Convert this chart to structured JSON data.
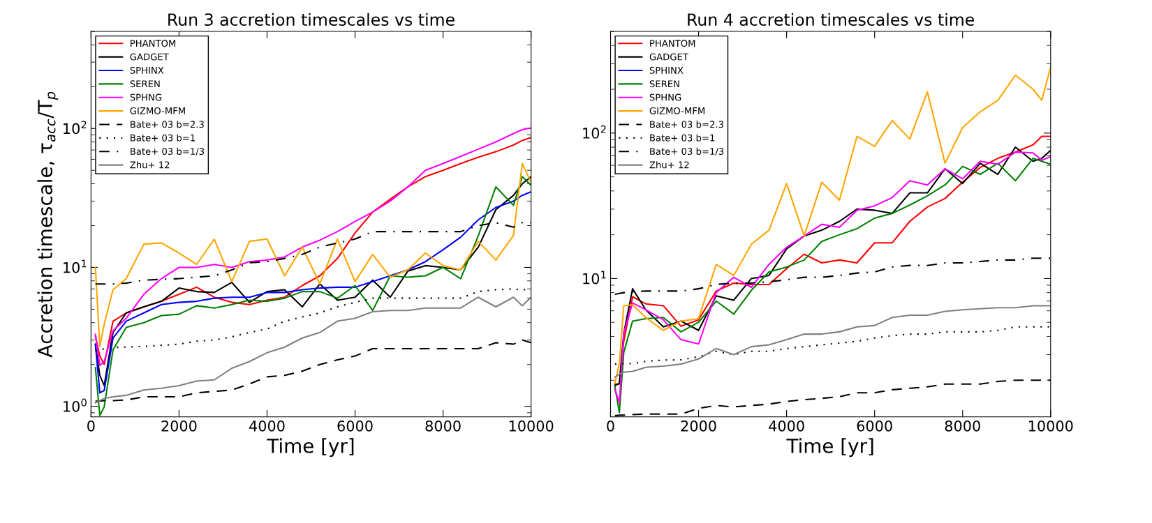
{
  "chart_data": [
    {
      "type": "line",
      "title": "Run 3 accretion timescales vs time",
      "xlabel": "Time [yr]",
      "ylabel": "Accretion timescale, τ$_{acc}$/T$_{p}$",
      "log": "y",
      "grid": false,
      "legend": "top left",
      "xlim": [
        0,
        10000
      ],
      "xticks": [
        0,
        2000,
        4000,
        6000,
        8000,
        10000
      ],
      "ylim": [
        0.84,
        500
      ],
      "yticks": [
        {
          "value": 1,
          "label": "10$^{0}$"
        },
        {
          "value": 10,
          "label": "10$^{1}$"
        },
        {
          "value": 100,
          "label": "10$^{2}$"
        }
      ],
      "x": [
        100,
        200,
        300,
        500,
        800,
        1200,
        1600,
        2000,
        2400,
        2800,
        3200,
        3600,
        4000,
        4400,
        4800,
        5200,
        5600,
        6000,
        6400,
        6800,
        7200,
        7600,
        8000,
        8400,
        8800,
        9200,
        9600,
        9800,
        10000
      ],
      "series": [
        {
          "name": "PHANTOM",
          "color": "#ff0000",
          "line_style": "solid",
          "values": [
            3.2,
            2.3,
            2.0,
            4.1,
            4.7,
            5.2,
            5.7,
            6.4,
            7.2,
            6.1,
            5.6,
            5.4,
            5.8,
            6.1,
            7.4,
            8.7,
            11.6,
            17.7,
            25,
            31,
            38,
            45,
            50,
            56,
            62,
            68,
            76,
            82,
            86
          ]
        },
        {
          "name": "GADGET",
          "color": "#000000",
          "line_style": "solid",
          "values": [
            2.8,
            1.67,
            1.41,
            3.4,
            4.7,
            5.2,
            5.7,
            7.1,
            6.7,
            6.6,
            7.8,
            5.6,
            6.7,
            6.9,
            5.2,
            7.6,
            5.8,
            6.1,
            8.1,
            6.1,
            9.4,
            10.3,
            10,
            9.6,
            14,
            26,
            33,
            40,
            45
          ]
        },
        {
          "name": "SPHINX",
          "color": "#0000ff",
          "line_style": "solid",
          "values": [
            2.8,
            1.25,
            1.3,
            3.1,
            4.1,
            4.7,
            5.4,
            5.6,
            5.7,
            6.0,
            6.1,
            6.1,
            6.6,
            6.6,
            6.9,
            7.1,
            7.2,
            7.2,
            7.9,
            8.7,
            9.6,
            11,
            13.4,
            16.5,
            22,
            27,
            30,
            33,
            35
          ]
        },
        {
          "name": "SEREN",
          "color": "#008000",
          "line_style": "solid",
          "values": [
            1.9,
            0.86,
            0.99,
            2.55,
            3.7,
            4.0,
            4.5,
            4.6,
            5.3,
            5.1,
            5.4,
            5.8,
            5.7,
            6.0,
            6.7,
            6.7,
            6.0,
            7.4,
            4.9,
            8.7,
            8.5,
            8.7,
            10,
            8.3,
            16.9,
            38,
            28,
            45,
            39
          ]
        },
        {
          "name": "SPHNG",
          "color": "#ff00ff",
          "line_style": "solid",
          "values": [
            3.3,
            1.97,
            2.1,
            3.5,
            4.3,
            6.4,
            8.3,
            10,
            10,
            10.5,
            10,
            11,
            11.3,
            11.9,
            14,
            15.7,
            18.1,
            21.4,
            25,
            30,
            38,
            50,
            56,
            63,
            71,
            80,
            92,
            98,
            101
          ]
        },
        {
          "name": "GIZMO-MFM",
          "color": "#ffa500",
          "line_style": "solid",
          "values": [
            10,
            2.7,
            3.9,
            6.9,
            8.3,
            14.7,
            15,
            12.7,
            10.5,
            16,
            7.9,
            15.4,
            16,
            8.7,
            14,
            7.6,
            16,
            7.9,
            12.4,
            8.5,
            9.6,
            12.7,
            10.3,
            9.6,
            15.4,
            11.3,
            17,
            56,
            41
          ]
        },
        {
          "name": "Bate+ 03 b=2.3",
          "color": "#000000",
          "line_style": "dashed",
          "values": [
            1.09,
            1.09,
            1.1,
            1.1,
            1.11,
            1.17,
            1.17,
            1.17,
            1.25,
            1.28,
            1.31,
            1.45,
            1.63,
            1.67,
            1.79,
            2.0,
            2.16,
            2.3,
            2.6,
            2.6,
            2.6,
            2.6,
            2.6,
            2.6,
            2.6,
            2.87,
            2.8,
            3.0,
            2.87
          ]
        },
        {
          "name": "Bate+ 03 b=1",
          "color": "#000000",
          "line_style": "dotted",
          "values": [
            2.5,
            2.55,
            2.6,
            2.65,
            2.67,
            2.7,
            2.75,
            2.8,
            2.94,
            3.0,
            3.16,
            3.4,
            3.6,
            4.1,
            4.4,
            4.7,
            5.2,
            5.6,
            6.0,
            6.0,
            6.0,
            6.0,
            6.0,
            6.0,
            6.7,
            6.9,
            7.0,
            6.9,
            7.0
          ]
        },
        {
          "name": "Bate+ 03 b=1/3",
          "color": "#000000",
          "line_style": "dashdot",
          "values": [
            7.6,
            7.6,
            7.6,
            7.6,
            7.7,
            8.1,
            8.2,
            8.3,
            8.5,
            8.7,
            9.6,
            10.8,
            11,
            11.6,
            12.4,
            14,
            15,
            16,
            18.1,
            18.1,
            18.1,
            18.1,
            18.1,
            18.1,
            20,
            21,
            19.5,
            21,
            21
          ]
        },
        {
          "name": "Zhu+ 12",
          "color": "#808080",
          "line_style": "solid",
          "values": [
            1.06,
            1.1,
            1.14,
            1.17,
            1.2,
            1.31,
            1.35,
            1.41,
            1.52,
            1.55,
            1.88,
            2.1,
            2.43,
            2.67,
            3.1,
            3.4,
            4.1,
            4.3,
            4.8,
            4.9,
            4.9,
            5.1,
            5.1,
            5.1,
            6.1,
            5.2,
            6.1,
            5.3,
            6.1
          ]
        }
      ]
    },
    {
      "type": "line",
      "title": "Run 4 accretion timescales vs time",
      "xlabel": "Time [yr]",
      "log": "y",
      "grid": false,
      "legend": "top left",
      "xlim": [
        0,
        10000
      ],
      "xticks": [
        0,
        2000,
        4000,
        6000,
        8000,
        10000
      ],
      "ylim": [
        1.12,
        500
      ],
      "yticks": [
        {
          "value": 10,
          "label": "10$^{1}$"
        },
        {
          "value": 100,
          "label": "10$^{2}$"
        }
      ],
      "x": [
        100,
        200,
        300,
        500,
        800,
        1200,
        1600,
        2000,
        2400,
        2800,
        3200,
        3600,
        4000,
        4400,
        4800,
        5200,
        5600,
        6000,
        6400,
        6800,
        7200,
        7600,
        8000,
        8400,
        8800,
        9200,
        9600,
        9800,
        10000
      ],
      "series": [
        {
          "name": "PHANTOM",
          "color": "#ff0000",
          "line_style": "solid",
          "values": [
            1.88,
            1.88,
            3.7,
            7.5,
            6.7,
            6.5,
            4.7,
            5.2,
            8.2,
            9.3,
            9.1,
            9.1,
            11.7,
            14.7,
            12.8,
            13.4,
            12.8,
            17.6,
            17.6,
            24.7,
            31,
            35.5,
            46,
            58,
            67,
            74,
            83,
            95,
            95
          ]
        },
        {
          "name": "GADGET",
          "color": "#000000",
          "line_style": "solid",
          "values": [
            1.84,
            1.9,
            4.2,
            8.5,
            6.1,
            4.65,
            5.1,
            4.4,
            7.6,
            7.1,
            10,
            10.5,
            16,
            19.6,
            21.5,
            24.7,
            30,
            29.5,
            28,
            38.8,
            38.8,
            56.8,
            45,
            62,
            52,
            80,
            64,
            67,
            76
          ]
        },
        {
          "name": "SPHINX",
          "color": "#0000ff",
          "line_style": "solid",
          "values": [
            null,
            null,
            null,
            null,
            null,
            null,
            null,
            null,
            null,
            null,
            null,
            null,
            null,
            null,
            null,
            null,
            null,
            null,
            null,
            null,
            null,
            null,
            null,
            null,
            null,
            null,
            null,
            null,
            null
          ]
        },
        {
          "name": "SEREN",
          "color": "#008000",
          "line_style": "solid",
          "values": [
            1.8,
            1.2,
            3.1,
            5.1,
            5.3,
            5.4,
            4.3,
            5.0,
            7.0,
            5.7,
            8.3,
            11.1,
            12,
            13.4,
            18,
            20,
            22,
            26,
            28,
            32,
            37,
            44,
            59,
            52,
            62,
            47,
            67,
            64,
            61
          ]
        },
        {
          "name": "SPHNG",
          "color": "#ff00ff",
          "line_style": "solid",
          "values": [
            1.72,
            1.4,
            4.2,
            6.8,
            6.1,
            5.2,
            3.8,
            3.55,
            8.0,
            10.2,
            8.7,
            12.5,
            16.4,
            19.6,
            23.6,
            22.5,
            29.5,
            31.6,
            36,
            47,
            44,
            56.8,
            48.5,
            64,
            61,
            74,
            73,
            65,
            69
          ]
        },
        {
          "name": "GIZMO-MFM",
          "color": "#ffa500",
          "line_style": "solid",
          "values": [
            1.92,
            2.6,
            6.5,
            6.6,
            5.4,
            4.4,
            5.1,
            5.3,
            12.5,
            10.5,
            17.2,
            21.5,
            45,
            19.6,
            46,
            34.6,
            95,
            81,
            122,
            91,
            192,
            62,
            109,
            140,
            168,
            250,
            200,
            168,
            283
          ]
        },
        {
          "name": "Bate+ 03 b=2.3",
          "color": "#000000",
          "line_style": "dashed",
          "values": [
            1.14,
            1.15,
            1.15,
            1.16,
            1.17,
            1.17,
            1.17,
            1.28,
            1.34,
            1.31,
            1.34,
            1.37,
            1.43,
            1.47,
            1.5,
            1.54,
            1.64,
            1.64,
            1.72,
            1.76,
            1.8,
            1.88,
            1.88,
            1.88,
            1.96,
            2.0,
            2.0,
            2.0,
            2.0
          ]
        },
        {
          "name": "Bate+ 03 b=1",
          "color": "#000000",
          "line_style": "dotted",
          "values": [
            2.58,
            2.59,
            2.6,
            2.6,
            2.7,
            2.75,
            2.76,
            2.9,
            3.16,
            3.0,
            3.16,
            3.16,
            3.3,
            3.4,
            3.5,
            3.6,
            3.7,
            3.9,
            4.05,
            4.15,
            4.15,
            4.3,
            4.3,
            4.3,
            4.4,
            4.65,
            4.65,
            4.65,
            4.65
          ]
        },
        {
          "name": "Bate+ 03 b=1/3",
          "color": "#000000",
          "line_style": "dashdot",
          "values": [
            7.8,
            7.9,
            8.0,
            8.1,
            8.2,
            8.2,
            8.2,
            8.5,
            9.1,
            9.3,
            9.3,
            9.5,
            9.8,
            10.2,
            10.2,
            10.5,
            10.9,
            11.1,
            12,
            12.3,
            12.3,
            12.8,
            12.8,
            13.1,
            13.4,
            13.4,
            13.8,
            13.8,
            13.8
          ]
        },
        {
          "name": "Zhu+ 12",
          "color": "#808080",
          "line_style": "solid",
          "values": [
            2.1,
            2.2,
            2.27,
            2.3,
            2.45,
            2.5,
            2.58,
            2.8,
            3.3,
            3.0,
            3.4,
            3.5,
            3.8,
            4.15,
            4.15,
            4.3,
            4.65,
            4.75,
            5.4,
            5.6,
            5.6,
            5.95,
            6.1,
            6.2,
            6.3,
            6.3,
            6.5,
            6.5,
            6.5
          ]
        }
      ]
    }
  ]
}
